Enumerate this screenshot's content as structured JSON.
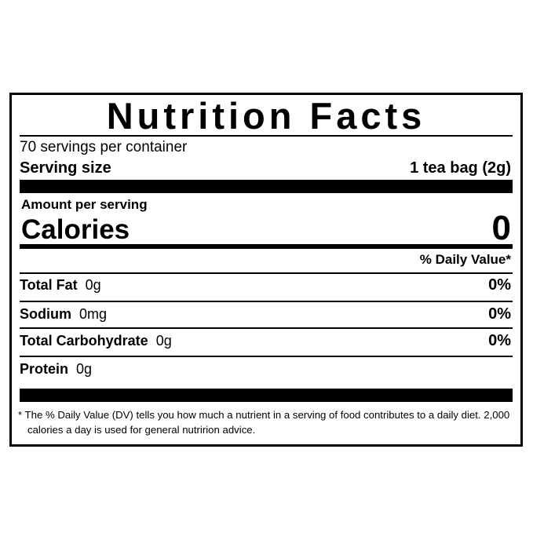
{
  "label": {
    "title": "Nutrition Facts",
    "servings_per_container": "70 servings per container",
    "serving_size": {
      "label": "Serving size",
      "value": "1 tea bag (2g)"
    },
    "amount_per_serving": "Amount per serving",
    "calories": {
      "label": "Calories",
      "value": "0"
    },
    "daily_value_header": "% Daily Value*",
    "nutrients": [
      {
        "name": "Total Fat",
        "amount": "0g",
        "dv": "0%"
      },
      {
        "name": "Sodium",
        "amount": "0mg",
        "dv": "0%"
      },
      {
        "name": "Total Carbohydrate",
        "amount": "0g",
        "dv": "0%"
      },
      {
        "name": "Protein",
        "amount": "0g"
      }
    ],
    "footnote": "* The % Daily Value (DV) tells you how much a nutrient in a serving of food contributes to a daily diet. 2,000 calories a day is used for general nutririon advice."
  }
}
